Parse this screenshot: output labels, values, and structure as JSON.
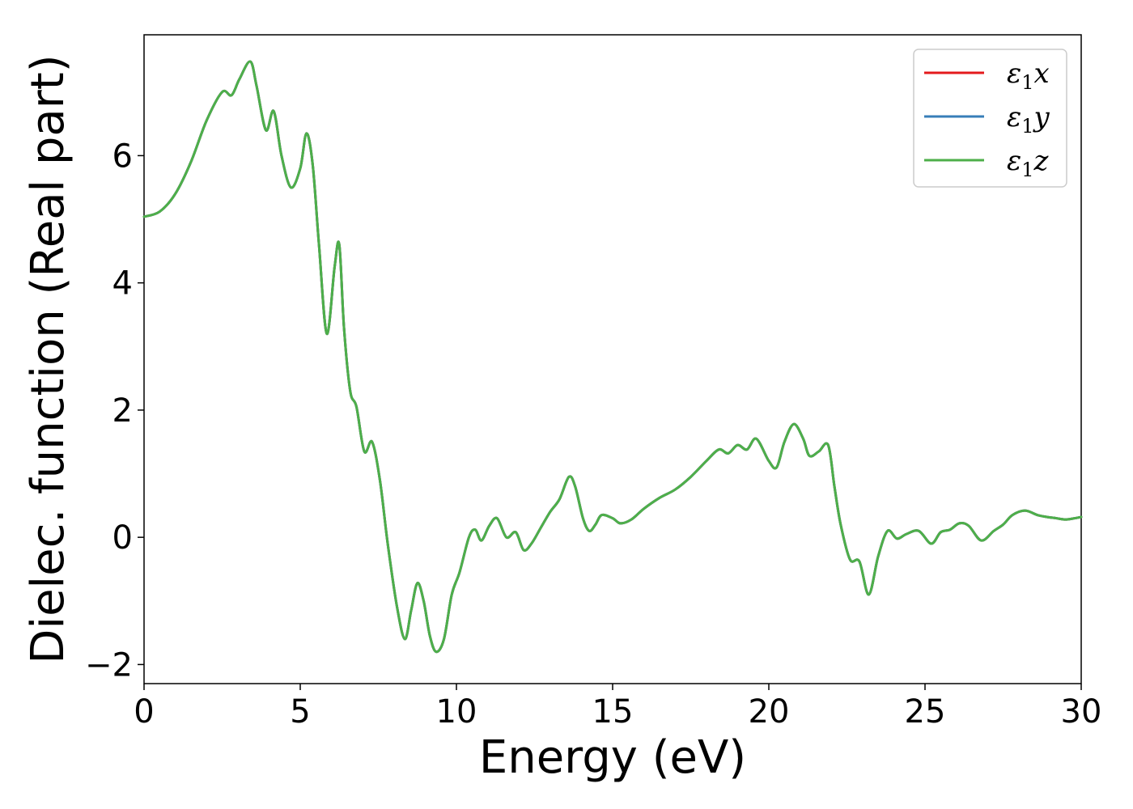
{
  "chart_data": {
    "type": "line",
    "title": "",
    "xlabel": "Energy (eV)",
    "ylabel": "Dielec. function (Real part)",
    "xlim": [
      0,
      30
    ],
    "ylim": [
      -2.3,
      7.9
    ],
    "xticks": [
      0,
      5,
      10,
      15,
      20,
      25,
      30
    ],
    "yticks": [
      -2,
      0,
      2,
      4,
      6
    ],
    "grid": false,
    "legend_position": "top-right",
    "series": [
      {
        "name": "ε1x",
        "color": "#e41a1c"
      },
      {
        "name": "ε1y",
        "color": "#377eb8"
      },
      {
        "name": "ε1z",
        "color": "#4daf4a"
      }
    ],
    "x": [
      0,
      0.5,
      1.0,
      1.5,
      2.0,
      2.5,
      2.8,
      3.05,
      3.4,
      3.6,
      3.9,
      4.15,
      4.4,
      4.7,
      5.0,
      5.2,
      5.4,
      5.6,
      5.85,
      6.1,
      6.25,
      6.4,
      6.6,
      6.8,
      7.05,
      7.3,
      7.55,
      7.8,
      8.1,
      8.35,
      8.55,
      8.75,
      8.95,
      9.15,
      9.35,
      9.6,
      9.85,
      10.1,
      10.4,
      10.6,
      10.8,
      11.05,
      11.3,
      11.6,
      11.9,
      12.15,
      12.4,
      12.7,
      13.0,
      13.3,
      13.6,
      13.8,
      14.05,
      14.25,
      14.45,
      14.65,
      15.0,
      15.25,
      15.6,
      16.0,
      16.5,
      17.0,
      17.5,
      18.0,
      18.4,
      18.7,
      19.0,
      19.3,
      19.6,
      20.0,
      20.25,
      20.5,
      20.8,
      21.1,
      21.3,
      21.6,
      21.9,
      22.1,
      22.3,
      22.6,
      22.9,
      23.2,
      23.5,
      23.8,
      24.1,
      24.4,
      24.8,
      25.2,
      25.5,
      25.8,
      26.1,
      26.4,
      26.8,
      27.2,
      27.5,
      27.8,
      28.2,
      28.6,
      28.9,
      29.2,
      29.5,
      29.8,
      30.0
    ],
    "y": [
      5.04,
      5.12,
      5.4,
      5.9,
      6.55,
      7.0,
      6.95,
      7.2,
      7.48,
      7.1,
      6.4,
      6.7,
      6.0,
      5.5,
      5.8,
      6.35,
      5.85,
      4.6,
      3.2,
      4.25,
      4.6,
      3.3,
      2.3,
      2.05,
      1.35,
      1.5,
      0.9,
      -0.1,
      -1.1,
      -1.6,
      -1.15,
      -0.72,
      -1.0,
      -1.55,
      -1.8,
      -1.6,
      -0.9,
      -0.55,
      0.0,
      0.12,
      -0.05,
      0.18,
      0.3,
      0.0,
      0.08,
      -0.2,
      -0.1,
      0.15,
      0.4,
      0.6,
      0.95,
      0.8,
      0.3,
      0.1,
      0.2,
      0.35,
      0.3,
      0.22,
      0.28,
      0.45,
      0.62,
      0.75,
      0.95,
      1.2,
      1.38,
      1.32,
      1.45,
      1.38,
      1.55,
      1.2,
      1.1,
      1.5,
      1.78,
      1.55,
      1.28,
      1.35,
      1.45,
      0.8,
      0.2,
      -0.35,
      -0.38,
      -0.9,
      -0.3,
      0.1,
      -0.02,
      0.05,
      0.1,
      -0.1,
      0.08,
      0.12,
      0.22,
      0.18,
      -0.05,
      0.1,
      0.2,
      0.35,
      0.42,
      0.35,
      0.32,
      0.3,
      0.28,
      0.3,
      0.32
    ]
  }
}
